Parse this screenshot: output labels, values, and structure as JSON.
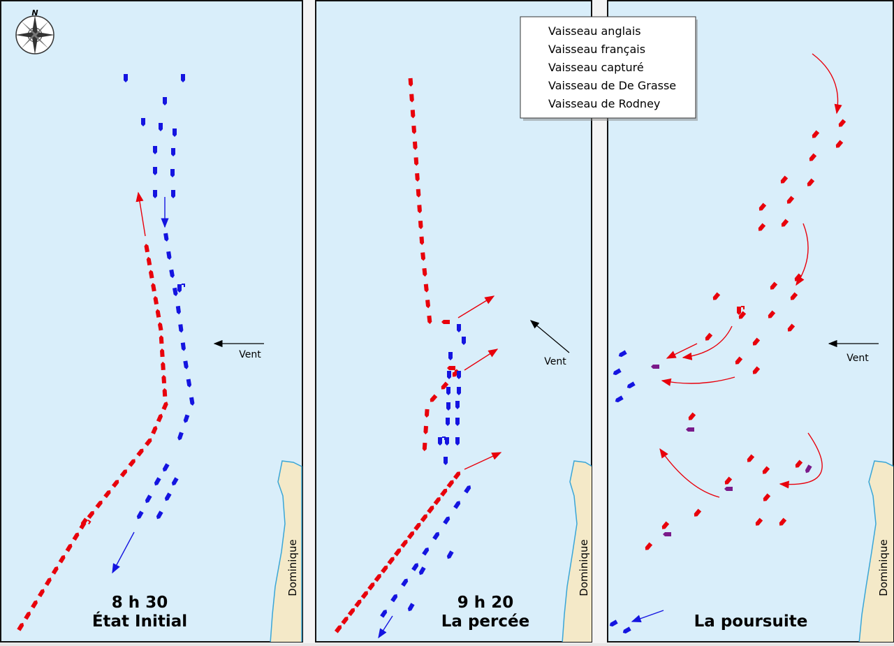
{
  "compass": {
    "label": "N"
  },
  "panels": [
    {
      "time": "8 h 30",
      "title": "État Initial",
      "wind": "Vent",
      "island": "Dominique"
    },
    {
      "time": "9 h 20",
      "title": "La percée",
      "wind": "Vent",
      "island": "Dominique"
    },
    {
      "title": "La poursuite",
      "wind": "Vent",
      "island": "Dominique"
    }
  ],
  "legend": {
    "items": [
      "Vaisseau anglais",
      "Vaisseau français",
      "Vaisseau capturé",
      "Vaisseau de De Grasse",
      "Vaisseau de Rodney"
    ]
  }
}
